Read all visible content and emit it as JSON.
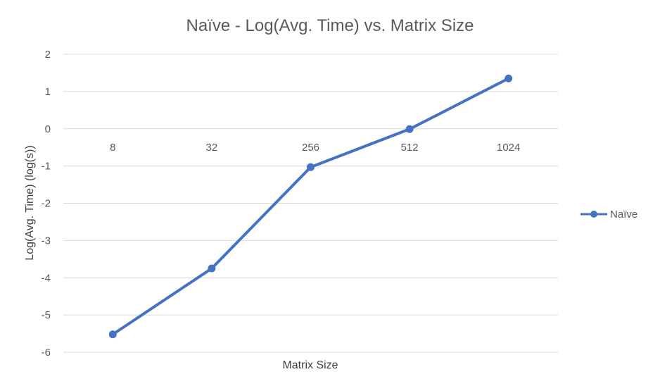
{
  "chart_data": {
    "type": "line",
    "title": "Naïve - Log(Avg. Time) vs. Matrix Size",
    "xlabel": "Matrix Size",
    "ylabel": "Log(Avg. Time) (log(s))",
    "categories": [
      "8",
      "32",
      "256",
      "512",
      "1024"
    ],
    "series": [
      {
        "name": "Naïve",
        "values": [
          -5.52,
          -3.75,
          -1.03,
          -0.01,
          1.35
        ],
        "color": "#4472c4"
      }
    ],
    "ylim": [
      -6,
      2
    ],
    "yticks": [
      "2",
      "1",
      "0",
      "-1",
      "-2",
      "-3",
      "-4",
      "-5",
      "-6"
    ],
    "grid": true,
    "legend_position": "right"
  }
}
